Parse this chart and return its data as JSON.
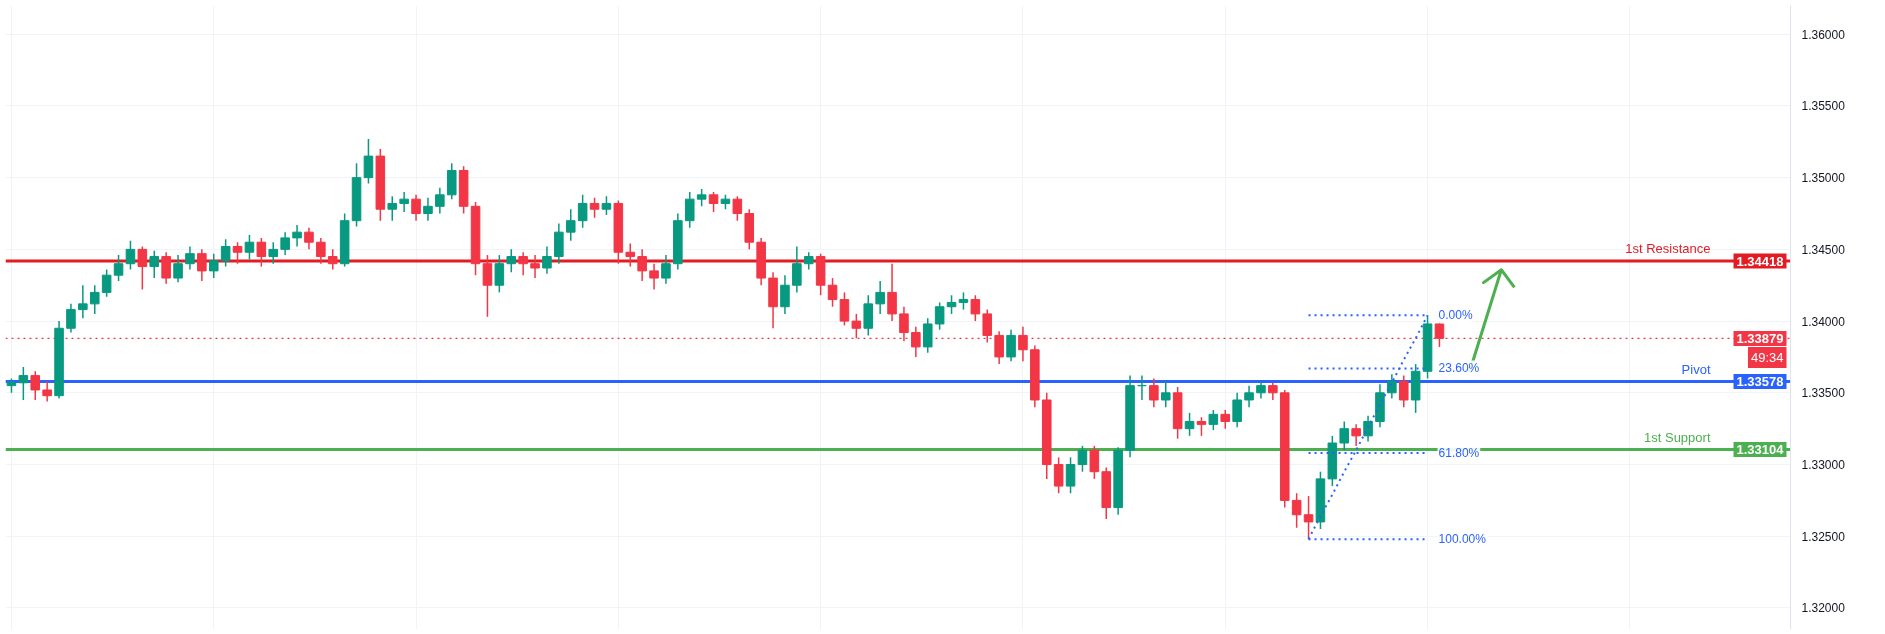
{
  "chart_data": {
    "type": "candlestick",
    "categories": [
      null,
      null,
      null,
      null,
      null,
      null,
      null,
      null,
      null,
      null,
      null,
      null,
      null,
      null,
      null,
      null,
      null,
      null,
      null,
      null,
      null,
      null,
      null,
      null,
      null,
      null,
      null,
      null,
      null,
      null,
      null,
      null,
      null,
      null,
      null,
      null,
      null,
      null,
      null,
      null,
      null,
      null,
      null,
      null,
      null,
      null,
      null,
      null,
      null,
      null,
      null,
      null,
      null,
      null,
      null,
      null,
      null,
      null,
      null,
      null,
      null,
      null,
      null,
      null,
      null,
      null,
      null,
      null,
      null,
      null,
      null,
      null,
      null,
      null,
      null,
      null,
      null,
      null,
      null,
      null,
      null,
      null,
      null,
      null,
      null,
      null,
      null,
      null,
      null,
      null,
      null,
      null,
      null,
      null,
      null,
      null,
      null,
      null,
      null,
      null,
      null,
      null,
      null,
      null,
      null,
      null,
      null,
      null,
      null,
      null,
      null,
      null,
      null,
      null,
      null,
      null,
      null,
      null,
      null,
      null,
      null,
      null,
      null,
      null,
      null,
      null,
      null,
      null,
      null,
      null,
      null,
      null,
      null,
      null,
      null,
      null,
      null,
      null,
      null,
      null,
      null,
      null,
      null,
      null,
      null,
      null,
      null,
      null,
      null,
      null
    ],
    "ohlc": [
      [
        1.3355,
        1.336,
        1.335,
        1.3357
      ],
      [
        1.3357,
        1.3368,
        1.3345,
        1.3362
      ],
      [
        1.3362,
        1.3365,
        1.3345,
        1.3352
      ],
      [
        1.3352,
        1.3358,
        1.3344,
        1.3348
      ],
      [
        1.3348,
        1.34,
        1.3346,
        1.3395
      ],
      [
        1.3395,
        1.3412,
        1.3392,
        1.3408
      ],
      [
        1.3408,
        1.3425,
        1.3402,
        1.3412
      ],
      [
        1.3412,
        1.3425,
        1.3405,
        1.342
      ],
      [
        1.342,
        1.3436,
        1.3417,
        1.3432
      ],
      [
        1.3432,
        1.3446,
        1.3428,
        1.344
      ],
      [
        1.344,
        1.3456,
        1.3436,
        1.345
      ],
      [
        1.345,
        1.3452,
        1.3422,
        1.3438
      ],
      [
        1.3438,
        1.3449,
        1.343,
        1.3445
      ],
      [
        1.3445,
        1.3448,
        1.3426,
        1.343
      ],
      [
        1.343,
        1.3446,
        1.3427,
        1.344
      ],
      [
        1.344,
        1.3452,
        1.3436,
        1.3447
      ],
      [
        1.3447,
        1.345,
        1.3428,
        1.3435
      ],
      [
        1.3435,
        1.3447,
        1.343,
        1.3442
      ],
      [
        1.3442,
        1.3457,
        1.3438,
        1.3452
      ],
      [
        1.3452,
        1.3455,
        1.344,
        1.3448
      ],
      [
        1.3448,
        1.346,
        1.3443,
        1.3455
      ],
      [
        1.3455,
        1.3458,
        1.3438,
        1.3445
      ],
      [
        1.3445,
        1.3455,
        1.344,
        1.345
      ],
      [
        1.345,
        1.3462,
        1.3446,
        1.3458
      ],
      [
        1.3458,
        1.3467,
        1.3452,
        1.3462
      ],
      [
        1.3462,
        1.3465,
        1.345,
        1.3455
      ],
      [
        1.3455,
        1.3458,
        1.344,
        1.3445
      ],
      [
        1.3445,
        1.345,
        1.3436,
        1.344
      ],
      [
        1.344,
        1.3475,
        1.3438,
        1.347
      ],
      [
        1.347,
        1.351,
        1.3466,
        1.35
      ],
      [
        1.35,
        1.3527,
        1.3496,
        1.3515
      ],
      [
        1.3515,
        1.352,
        1.347,
        1.3478
      ],
      [
        1.3478,
        1.3487,
        1.347,
        1.3482
      ],
      [
        1.3482,
        1.349,
        1.3476,
        1.3485
      ],
      [
        1.3485,
        1.3488,
        1.347,
        1.3475
      ],
      [
        1.3475,
        1.3486,
        1.347,
        1.348
      ],
      [
        1.348,
        1.3493,
        1.3475,
        1.3488
      ],
      [
        1.3488,
        1.351,
        1.3485,
        1.3505
      ],
      [
        1.3505,
        1.3508,
        1.3475,
        1.348
      ],
      [
        1.348,
        1.3483,
        1.3432,
        1.344
      ],
      [
        1.344,
        1.3446,
        1.3403,
        1.3425
      ],
      [
        1.3425,
        1.3446,
        1.342,
        1.344
      ],
      [
        1.344,
        1.345,
        1.3434,
        1.3445
      ],
      [
        1.3445,
        1.3448,
        1.3432,
        1.344
      ],
      [
        1.344,
        1.3446,
        1.343,
        1.3437
      ],
      [
        1.3437,
        1.3452,
        1.3433,
        1.3445
      ],
      [
        1.3445,
        1.3468,
        1.344,
        1.3462
      ],
      [
        1.3462,
        1.3478,
        1.3456,
        1.347
      ],
      [
        1.347,
        1.3488,
        1.3465,
        1.3482
      ],
      [
        1.3482,
        1.3486,
        1.3472,
        1.3478
      ],
      [
        1.3478,
        1.3487,
        1.3474,
        1.3482
      ],
      [
        1.3482,
        1.3484,
        1.344,
        1.3448
      ],
      [
        1.3448,
        1.3454,
        1.3438,
        1.3445
      ],
      [
        1.3445,
        1.345,
        1.3428,
        1.3435
      ],
      [
        1.3435,
        1.344,
        1.3422,
        1.343
      ],
      [
        1.343,
        1.3446,
        1.3426,
        1.344
      ],
      [
        1.344,
        1.3475,
        1.3436,
        1.347
      ],
      [
        1.347,
        1.349,
        1.3465,
        1.3485
      ],
      [
        1.3485,
        1.3492,
        1.348,
        1.3488
      ],
      [
        1.3488,
        1.349,
        1.3476,
        1.3482
      ],
      [
        1.3482,
        1.3488,
        1.3478,
        1.3485
      ],
      [
        1.3485,
        1.3487,
        1.347,
        1.3475
      ],
      [
        1.3475,
        1.3478,
        1.345,
        1.3455
      ],
      [
        1.3455,
        1.3458,
        1.3425,
        1.343
      ],
      [
        1.343,
        1.3434,
        1.3395,
        1.341
      ],
      [
        1.341,
        1.3432,
        1.3405,
        1.3425
      ],
      [
        1.3425,
        1.3452,
        1.342,
        1.344
      ],
      [
        1.344,
        1.3448,
        1.3436,
        1.3445
      ],
      [
        1.3445,
        1.3447,
        1.3418,
        1.3425
      ],
      [
        1.3425,
        1.343,
        1.341,
        1.3415
      ],
      [
        1.3415,
        1.342,
        1.3397,
        1.34
      ],
      [
        1.34,
        1.3405,
        1.3388,
        1.3395
      ],
      [
        1.3395,
        1.3418,
        1.339,
        1.3412
      ],
      [
        1.3412,
        1.3428,
        1.3405,
        1.342
      ],
      [
        1.342,
        1.344,
        1.34,
        1.3405
      ],
      [
        1.3405,
        1.341,
        1.3386,
        1.3392
      ],
      [
        1.3392,
        1.3396,
        1.3375,
        1.3382
      ],
      [
        1.3382,
        1.3402,
        1.3378,
        1.3398
      ],
      [
        1.3398,
        1.3413,
        1.3394,
        1.341
      ],
      [
        1.341,
        1.3418,
        1.3405,
        1.3413
      ],
      [
        1.3413,
        1.342,
        1.3408,
        1.3415
      ],
      [
        1.3415,
        1.3418,
        1.34,
        1.3405
      ],
      [
        1.3405,
        1.3408,
        1.3385,
        1.339
      ],
      [
        1.339,
        1.3393,
        1.337,
        1.3375
      ],
      [
        1.3375,
        1.3394,
        1.3372,
        1.339
      ],
      [
        1.339,
        1.3396,
        1.3372,
        1.338
      ],
      [
        1.338,
        1.3383,
        1.334,
        1.3345
      ],
      [
        1.3345,
        1.335,
        1.329,
        1.33
      ],
      [
        1.33,
        1.3305,
        1.328,
        1.3285
      ],
      [
        1.3285,
        1.3305,
        1.328,
        1.33
      ],
      [
        1.33,
        1.3313,
        1.3295,
        1.331
      ],
      [
        1.331,
        1.3313,
        1.329,
        1.3295
      ],
      [
        1.3295,
        1.3298,
        1.3262,
        1.327
      ],
      [
        1.327,
        1.3312,
        1.3265,
        1.331
      ],
      [
        1.331,
        1.3362,
        1.3305,
        1.3355
      ],
      [
        1.3355,
        1.3362,
        1.3345,
        1.3355
      ],
      [
        1.3355,
        1.336,
        1.334,
        1.3345
      ],
      [
        1.3345,
        1.3358,
        1.334,
        1.335
      ],
      [
        1.335,
        1.3354,
        1.3318,
        1.3325
      ],
      [
        1.3325,
        1.3336,
        1.332,
        1.333
      ],
      [
        1.333,
        1.3333,
        1.332,
        1.3328
      ],
      [
        1.3328,
        1.3338,
        1.3324,
        1.3335
      ],
      [
        1.3335,
        1.3338,
        1.3325,
        1.333
      ],
      [
        1.333,
        1.335,
        1.3326,
        1.3345
      ],
      [
        1.3345,
        1.3355,
        1.334,
        1.335
      ],
      [
        1.335,
        1.3358,
        1.3346,
        1.3355
      ],
      [
        1.3355,
        1.3357,
        1.3345,
        1.335
      ],
      [
        1.335,
        1.3352,
        1.327,
        1.3275
      ],
      [
        1.3275,
        1.328,
        1.3256,
        1.3265
      ],
      [
        1.3265,
        1.3278,
        1.3248,
        1.326
      ],
      [
        1.326,
        1.3295,
        1.3255,
        1.329
      ],
      [
        1.329,
        1.332,
        1.3285,
        1.3315
      ],
      [
        1.3315,
        1.333,
        1.331,
        1.3325
      ],
      [
        1.3325,
        1.3328,
        1.3313,
        1.332
      ],
      [
        1.332,
        1.3334,
        1.3316,
        1.333
      ],
      [
        1.333,
        1.3356,
        1.3326,
        1.335
      ],
      [
        1.335,
        1.3363,
        1.3346,
        1.3358
      ],
      [
        1.3358,
        1.3362,
        1.334,
        1.3345
      ],
      [
        1.3345,
        1.337,
        1.3336,
        1.3365
      ],
      [
        1.3365,
        1.3404,
        1.336,
        1.3398
      ],
      [
        1.3398,
        1.34,
        1.3382,
        1.3388
      ],
      null,
      null,
      null,
      null,
      null,
      null,
      null,
      null,
      null,
      null,
      null,
      null,
      null,
      null,
      null,
      null,
      null,
      null,
      null,
      null,
      null,
      null,
      null,
      null,
      null,
      null,
      null,
      null,
      null
    ],
    "colors": [
      "#089981",
      "#089981",
      "#f23645",
      "#f23645",
      "#089981",
      "#089981",
      "#089981",
      "#089981",
      "#089981",
      "#089981",
      "#089981",
      "#f23645",
      "#089981",
      "#f23645",
      "#089981",
      "#089981",
      "#f23645",
      "#089981",
      "#089981",
      "#f23645",
      "#089981",
      "#f23645",
      "#089981",
      "#089981",
      "#089981",
      "#f23645",
      "#f23645",
      "#f23645",
      "#089981",
      "#089981",
      "#089981",
      "#f23645",
      "#089981",
      "#089981",
      "#f23645",
      "#089981",
      "#089981",
      "#089981",
      "#f23645",
      "#f23645",
      "#f23645",
      "#089981",
      "#089981",
      "#f23645",
      "#f23645",
      "#089981",
      "#089981",
      "#089981",
      "#089981",
      "#f23645",
      "#089981",
      "#f23645",
      "#f23645",
      "#f23645",
      "#f23645",
      "#089981",
      "#089981",
      "#089981",
      "#089981",
      "#f23645",
      "#089981",
      "#f23645",
      "#f23645",
      "#f23645",
      "#f23645",
      "#089981",
      "#089981",
      "#089981",
      "#f23645",
      "#f23645",
      "#f23645",
      "#f23645",
      "#089981",
      "#089981",
      "#f23645",
      "#f23645",
      "#f23645",
      "#089981",
      "#089981",
      "#089981",
      "#089981",
      "#f23645",
      "#f23645",
      "#f23645",
      "#089981",
      "#f23645",
      "#f23645",
      "#f23645",
      "#f23645",
      "#089981",
      "#089981",
      "#f23645",
      "#f23645",
      "#089981",
      "#089981",
      "#089981",
      "#f23645",
      "#089981",
      "#f23645",
      "#089981",
      "#f23645",
      "#089981",
      "#f23645",
      "#089981",
      "#089981",
      "#089981",
      "#f23645",
      "#f23645",
      "#f23645",
      "#f23645",
      "#089981",
      "#089981",
      "#089981",
      "#f23645",
      "#089981",
      "#089981",
      "#089981",
      "#f23645",
      "#089981",
      "#089981",
      "#f23645",
      null,
      null,
      null,
      null,
      null,
      null,
      null,
      null,
      null,
      null,
      null,
      null,
      null,
      null,
      null,
      null,
      null,
      null,
      null,
      null,
      null,
      null,
      null,
      null,
      null,
      null,
      null,
      null,
      null
    ],
    "series": [
      {
        "type": "line",
        "name": "0.00%",
        "color": "#2962ff",
        "line_style": "dotted",
        "values": [
          null,
          null,
          null,
          null,
          null,
          null,
          null,
          null,
          null,
          null,
          null,
          null,
          null,
          null,
          null,
          null,
          null,
          null,
          null,
          null,
          null,
          null,
          null,
          null,
          null,
          null,
          null,
          null,
          null,
          null,
          null,
          null,
          null,
          null,
          null,
          null,
          null,
          null,
          null,
          null,
          null,
          null,
          null,
          null,
          null,
          null,
          null,
          null,
          null,
          null,
          null,
          null,
          null,
          null,
          null,
          null,
          null,
          null,
          null,
          null,
          null,
          null,
          null,
          null,
          null,
          null,
          null,
          null,
          null,
          null,
          null,
          null,
          null,
          null,
          null,
          null,
          null,
          null,
          null,
          null,
          null,
          null,
          null,
          null,
          null,
          null,
          null,
          null,
          null,
          null,
          null,
          null,
          null,
          null,
          null,
          null,
          null,
          null,
          null,
          null,
          null,
          null,
          null,
          null,
          null,
          null,
          null,
          null,
          null,
          1.3404,
          1.3404,
          1.3404,
          1.3404,
          1.3404,
          1.3404,
          1.3404,
          1.3404,
          1.3404,
          1.3404,
          1.3404,
          null,
          null,
          null,
          null,
          null,
          null,
          null,
          null,
          null,
          null,
          null,
          null,
          null,
          null,
          null,
          null,
          null,
          null,
          null,
          null,
          null,
          null,
          null,
          null,
          null,
          null,
          null,
          null,
          null,
          null
        ]
      },
      {
        "type": "line",
        "name": "23.60%",
        "color": "#2962ff",
        "line_style": "dotted",
        "values": [
          null,
          null,
          null,
          null,
          null,
          null,
          null,
          null,
          null,
          null,
          null,
          null,
          null,
          null,
          null,
          null,
          null,
          null,
          null,
          null,
          null,
          null,
          null,
          null,
          null,
          null,
          null,
          null,
          null,
          null,
          null,
          null,
          null,
          null,
          null,
          null,
          null,
          null,
          null,
          null,
          null,
          null,
          null,
          null,
          null,
          null,
          null,
          null,
          null,
          null,
          null,
          null,
          null,
          null,
          null,
          null,
          null,
          null,
          null,
          null,
          null,
          null,
          null,
          null,
          null,
          null,
          null,
          null,
          null,
          null,
          null,
          null,
          null,
          null,
          null,
          null,
          null,
          null,
          null,
          null,
          null,
          null,
          null,
          null,
          null,
          null,
          null,
          null,
          null,
          null,
          null,
          null,
          null,
          null,
          null,
          null,
          null,
          null,
          null,
          null,
          null,
          null,
          null,
          null,
          null,
          null,
          null,
          null,
          null,
          1.3367,
          1.3367,
          1.3367,
          1.3367,
          1.3367,
          1.3367,
          1.3367,
          1.3367,
          1.3367,
          1.3367,
          1.3367,
          null,
          null,
          null,
          null,
          null,
          null,
          null,
          null,
          null,
          null,
          null,
          null,
          null,
          null,
          null,
          null,
          null,
          null,
          null,
          null,
          null,
          null,
          null,
          null,
          null,
          null,
          null,
          null,
          null,
          null
        ]
      },
      {
        "type": "line",
        "name": "61.80%",
        "color": "#2962ff",
        "line_style": "dotted",
        "values": [
          null,
          null,
          null,
          null,
          null,
          null,
          null,
          null,
          null,
          null,
          null,
          null,
          null,
          null,
          null,
          null,
          null,
          null,
          null,
          null,
          null,
          null,
          null,
          null,
          null,
          null,
          null,
          null,
          null,
          null,
          null,
          null,
          null,
          null,
          null,
          null,
          null,
          null,
          null,
          null,
          null,
          null,
          null,
          null,
          null,
          null,
          null,
          null,
          null,
          null,
          null,
          null,
          null,
          null,
          null,
          null,
          null,
          null,
          null,
          null,
          null,
          null,
          null,
          null,
          null,
          null,
          null,
          null,
          null,
          null,
          null,
          null,
          null,
          null,
          null,
          null,
          null,
          null,
          null,
          null,
          null,
          null,
          null,
          null,
          null,
          null,
          null,
          null,
          null,
          null,
          null,
          null,
          null,
          null,
          null,
          null,
          null,
          null,
          null,
          null,
          null,
          null,
          null,
          null,
          null,
          null,
          null,
          null,
          null,
          1.3308,
          1.3308,
          1.3308,
          1.3308,
          1.3308,
          1.3308,
          1.3308,
          1.3308,
          1.3308,
          1.3308,
          1.3308,
          null,
          null,
          null,
          null,
          null,
          null,
          null,
          null,
          null,
          null,
          null,
          null,
          null,
          null,
          null,
          null,
          null,
          null,
          null,
          null,
          null,
          null,
          null,
          null,
          null,
          null,
          null,
          null,
          null,
          null
        ]
      },
      {
        "type": "line",
        "name": "100.00%",
        "color": "#2962ff",
        "line_style": "dotted",
        "values": [
          null,
          null,
          null,
          null,
          null,
          null,
          null,
          null,
          null,
          null,
          null,
          null,
          null,
          null,
          null,
          null,
          null,
          null,
          null,
          null,
          null,
          null,
          null,
          null,
          null,
          null,
          null,
          null,
          null,
          null,
          null,
          null,
          null,
          null,
          null,
          null,
          null,
          null,
          null,
          null,
          null,
          null,
          null,
          null,
          null,
          null,
          null,
          null,
          null,
          null,
          null,
          null,
          null,
          null,
          null,
          null,
          null,
          null,
          null,
          null,
          null,
          null,
          null,
          null,
          null,
          null,
          null,
          null,
          null,
          null,
          null,
          null,
          null,
          null,
          null,
          null,
          null,
          null,
          null,
          null,
          null,
          null,
          null,
          null,
          null,
          null,
          null,
          null,
          null,
          null,
          null,
          null,
          null,
          null,
          null,
          null,
          null,
          null,
          null,
          null,
          null,
          null,
          null,
          null,
          null,
          null,
          null,
          null,
          null,
          1.3248,
          1.3248,
          1.3248,
          1.3248,
          1.3248,
          1.3248,
          1.3248,
          1.3248,
          1.3248,
          1.3248,
          1.3248,
          null,
          null,
          null,
          null,
          null,
          null,
          null,
          null,
          null,
          null,
          null,
          null,
          null,
          null,
          null,
          null,
          null,
          null,
          null,
          null,
          null,
          null,
          null,
          null,
          null,
          null,
          null,
          null,
          null,
          null
        ]
      },
      {
        "type": "line",
        "color": "#2962ff",
        "line_style": "dotted",
        "values": [
          null,
          null,
          null,
          null,
          null,
          null,
          null,
          null,
          null,
          null,
          null,
          null,
          null,
          null,
          null,
          null,
          null,
          null,
          null,
          null,
          null,
          null,
          null,
          null,
          null,
          null,
          null,
          null,
          null,
          null,
          null,
          null,
          null,
          null,
          null,
          null,
          null,
          null,
          null,
          null,
          null,
          null,
          null,
          null,
          null,
          null,
          null,
          null,
          null,
          null,
          null,
          null,
          null,
          null,
          null,
          null,
          null,
          null,
          null,
          null,
          null,
          null,
          null,
          null,
          null,
          null,
          null,
          null,
          null,
          null,
          null,
          null,
          null,
          null,
          null,
          null,
          null,
          null,
          null,
          null,
          null,
          null,
          null,
          null,
          null,
          null,
          null,
          null,
          null,
          null,
          null,
          null,
          null,
          null,
          null,
          null,
          null,
          null,
          null,
          null,
          null,
          null,
          null,
          null,
          null,
          null,
          null,
          null,
          null,
          1.3248,
          1.3264,
          1.3279,
          1.3295,
          1.331,
          1.3326,
          1.3342,
          1.3357,
          1.3373,
          1.3388,
          1.3404,
          null,
          null,
          null,
          null,
          null,
          null,
          null,
          null,
          null,
          null,
          null,
          null,
          null,
          null,
          null,
          null,
          null,
          null,
          null,
          null,
          null,
          null,
          null,
          null,
          null,
          null,
          null,
          null,
          null,
          null
        ]
      }
    ],
    "ref_lines": [
      {
        "axis": "y",
        "value": 1.34418,
        "label": "1st Resistance",
        "color": "#e31b23",
        "line_style": "solid"
      },
      {
        "axis": "y",
        "value": 1.33578,
        "label": "Pivot",
        "color": "#2962ff",
        "line_style": "solid"
      },
      {
        "axis": "y",
        "value": 1.33104,
        "label": "1st Support",
        "color": "#4caf50",
        "line_style": "solid"
      },
      {
        "axis": "y",
        "value": 1.33879,
        "label": null,
        "color": "#f23645",
        "line_style": "dotted"
      }
    ],
    "annotations": [
      {
        "text": "1.34418",
        "y": 1.34418
      },
      {
        "text": "1.33879",
        "y": 1.33879
      },
      {
        "text": "49:34",
        "y": 1.33879
      },
      {
        "text": "1.33578",
        "y": 1.33578
      },
      {
        "text": "1.33104",
        "y": 1.33104
      }
    ],
    "ylim": [
      1.3185,
      1.362
    ],
    "yticks": [
      {
        "value": 1.32,
        "label": "1.32000"
      },
      {
        "value": 1.325,
        "label": "1.32500"
      },
      {
        "value": 1.33,
        "label": "1.33000"
      },
      {
        "value": 1.335,
        "label": "1.33500"
      },
      {
        "value": 1.34,
        "label": "1.34000"
      },
      {
        "value": 1.345,
        "label": "1.34500"
      },
      {
        "value": 1.35,
        "label": "1.35000"
      },
      {
        "value": 1.355,
        "label": "1.35500"
      },
      {
        "value": 1.36,
        "label": "1.36000"
      }
    ],
    "tick_labels": "y",
    "grid": true
  }
}
